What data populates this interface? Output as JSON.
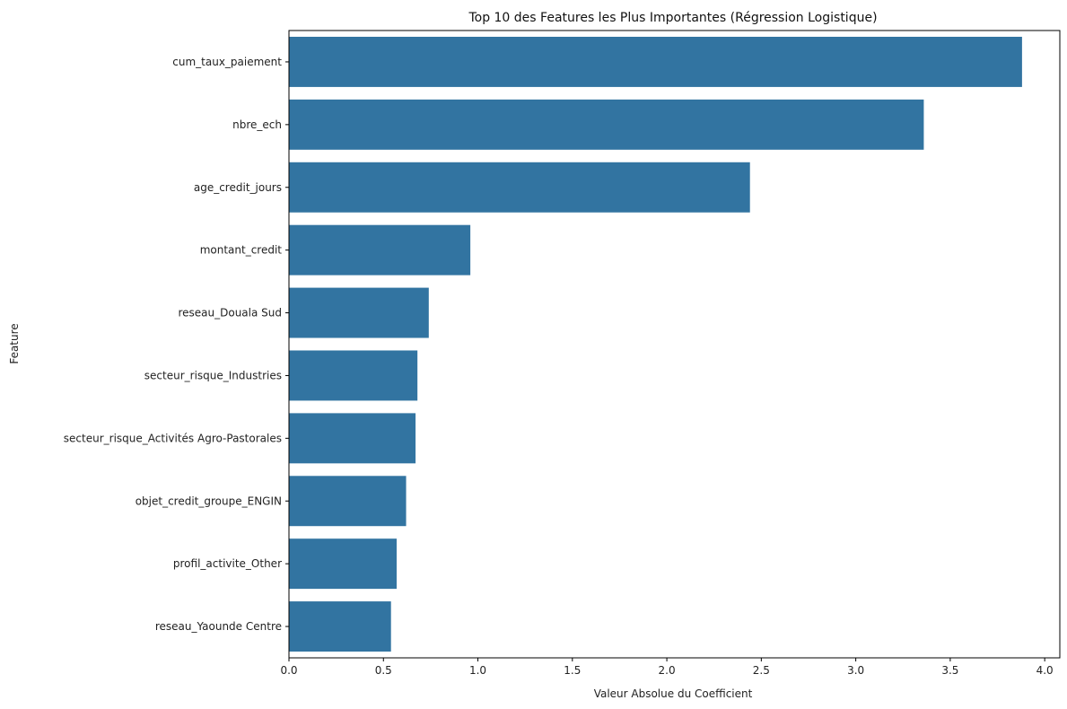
{
  "chart_data": {
    "type": "bar",
    "orientation": "horizontal",
    "title": "Top 10 des Features les Plus Importantes (Régression Logistique)",
    "xlabel": "Valeur Absolue du Coefficient",
    "ylabel": "Feature",
    "xlim": [
      0,
      4.08
    ],
    "x_ticks": [
      0.0,
      0.5,
      1.0,
      1.5,
      2.0,
      2.5,
      3.0,
      3.5,
      4.0
    ],
    "x_tick_labels": [
      "0.0",
      "0.5",
      "1.0",
      "1.5",
      "2.0",
      "2.5",
      "3.0",
      "3.5",
      "4.0"
    ],
    "grid": false,
    "bar_color": "#3274a1",
    "categories": [
      "cum_taux_paiement",
      "nbre_ech",
      "age_credit_jours",
      "montant_credit",
      "reseau_Douala Sud",
      "secteur_risque_Industries",
      "secteur_risque_Activités Agro-Pastorales",
      "objet_credit_groupe_ENGIN",
      "profil_activite_Other",
      "reseau_Yaounde Centre"
    ],
    "values": [
      3.88,
      3.36,
      2.44,
      0.96,
      0.74,
      0.68,
      0.67,
      0.62,
      0.57,
      0.54
    ]
  }
}
